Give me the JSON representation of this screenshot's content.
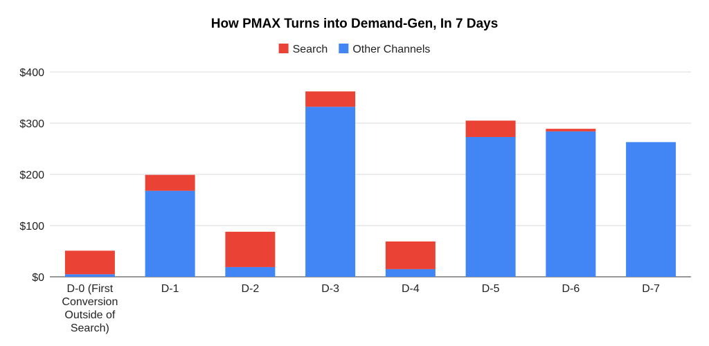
{
  "chart_data": {
    "type": "bar",
    "stacked": true,
    "title": "How PMAX Turns into Demand-Gen, In 7 Days",
    "xlabel": "",
    "ylabel": "",
    "categories": [
      [
        "D-0 (First",
        "Conversion",
        "Outside of",
        "Search)"
      ],
      [
        "D-1"
      ],
      [
        "D-2"
      ],
      [
        "D-3"
      ],
      [
        "D-4"
      ],
      [
        "D-5"
      ],
      [
        "D-6"
      ],
      [
        "D-7"
      ]
    ],
    "series": [
      {
        "name": "Other Channels",
        "color": "#4285f4",
        "values": [
          5,
          168,
          19,
          332,
          15,
          273,
          284,
          263
        ]
      },
      {
        "name": "Search",
        "color": "#ea4335",
        "values": [
          46,
          31,
          69,
          30,
          54,
          32,
          5,
          0
        ]
      }
    ],
    "legend": {
      "placement": "top",
      "order": [
        "Search",
        "Other Channels"
      ]
    },
    "ylim": [
      0,
      400
    ],
    "yticks": [
      0,
      100,
      200,
      300,
      400
    ],
    "ytick_labels": [
      "$0",
      "$100",
      "$200",
      "$300",
      "$400"
    ],
    "grid": true
  }
}
